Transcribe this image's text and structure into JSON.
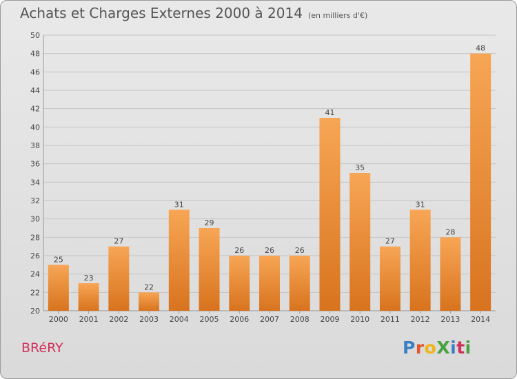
{
  "title": {
    "main": "Achats et Charges Externes 2000 à 2014",
    "unit": "(en milliers d'€)"
  },
  "place": "BRéRY",
  "logo": {
    "text": "ProXiti",
    "colors": [
      "#3a7fc4",
      "#e8542e",
      "#f0b51c",
      "#47a23f",
      "#3a7fc4",
      "#d0305a",
      "#47a23f"
    ]
  },
  "colors": {
    "bar_light": "#f7a655",
    "bar_dark": "#d8731e",
    "grid": "#c4c4c4",
    "text": "#444444"
  },
  "chart_data": {
    "type": "bar",
    "categories": [
      "2000",
      "2001",
      "2002",
      "2003",
      "2004",
      "2005",
      "2006",
      "2007",
      "2008",
      "2009",
      "2010",
      "2011",
      "2012",
      "2013",
      "2014"
    ],
    "values": [
      25,
      23,
      27,
      22,
      31,
      29,
      26,
      26,
      26,
      41,
      35,
      27,
      31,
      28,
      48
    ],
    "ylim": [
      20,
      50
    ],
    "yticks": [
      20,
      22,
      24,
      26,
      28,
      30,
      32,
      34,
      36,
      38,
      40,
      42,
      44,
      46,
      48,
      50
    ],
    "grid": true
  }
}
